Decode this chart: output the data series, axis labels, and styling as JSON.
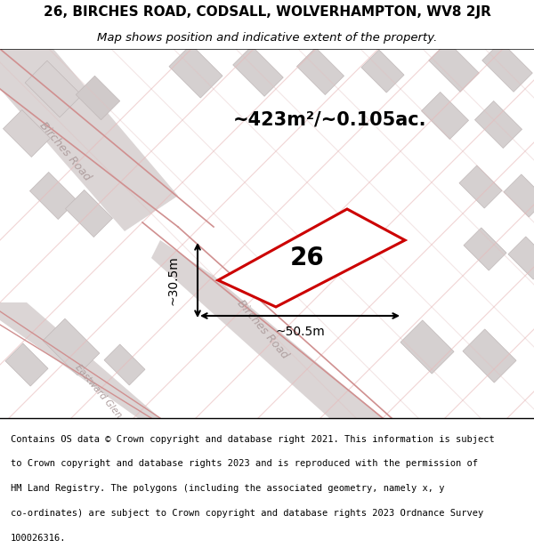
{
  "title_line1": "26, BIRCHES ROAD, CODSALL, WOLVERHAMPTON, WV8 2JR",
  "title_line2": "Map shows position and indicative extent of the property.",
  "footer_text": "Contains OS data © Crown copyright and database right 2021. This information is subject to Crown copyright and database rights 2023 and is reproduced with the permission of HM Land Registry. The polygons (including the associated geometry, namely x, y co-ordinates) are subject to Crown copyright and database rights 2023 Ordnance Survey 100026316.",
  "area_label": "~423m²/~0.105ac.",
  "plot_number": "26",
  "dim_width": "~50.5m",
  "dim_height": "~30.5m",
  "bg_color": "#f0eeee",
  "map_bg": "#f5f2f2",
  "road_color_light": "#e8c8c8",
  "building_fill": "#d8d0d0",
  "plot_outline_color": "#cc0000",
  "road_label_birches_road_upper": "Birches Road",
  "road_label_birches_road_lower": "Birches Road",
  "road_label_eastward_glen": "Eastward Glen"
}
